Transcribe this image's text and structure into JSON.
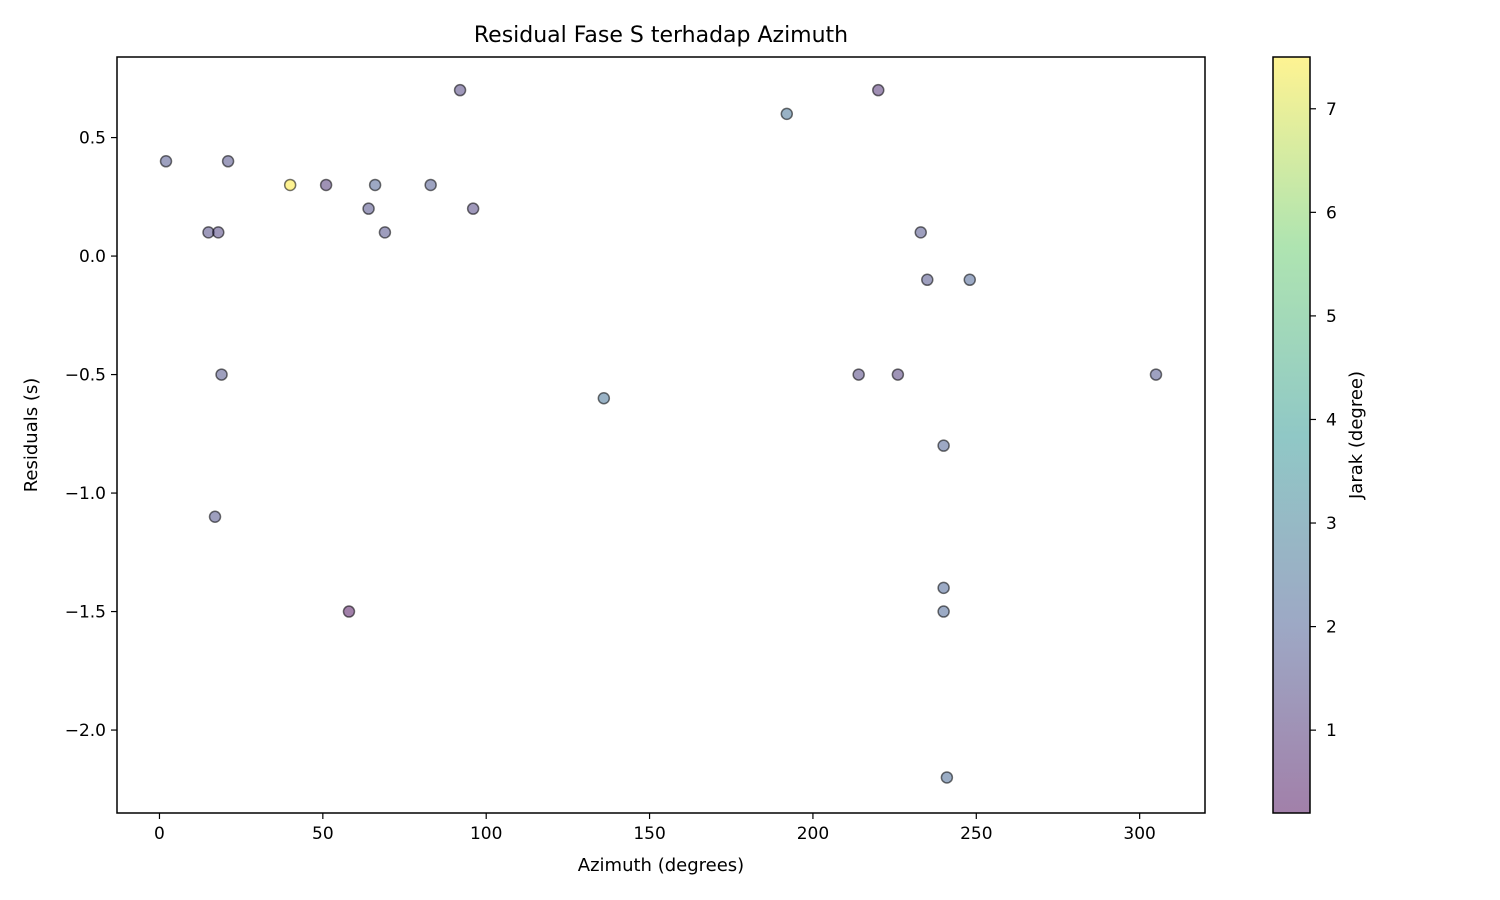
{
  "chart_data": {
    "type": "scatter",
    "title": "Residual Fase S terhadap Azimuth",
    "xlabel": "Azimuth (degrees)",
    "ylabel": "Residuals (s)",
    "colorbar_label": "Jarak (degree)",
    "xlim": [
      -13,
      320
    ],
    "ylim": [
      -2.35,
      0.84
    ],
    "x_ticks": [
      0,
      50,
      100,
      150,
      200,
      250,
      300
    ],
    "y_ticks": [
      0.5,
      0.0,
      -0.5,
      -1.0,
      -1.5,
      -2.0
    ],
    "y_tick_labels": [
      "0.5",
      "0.0",
      "−0.5",
      "−1.0",
      "−1.5",
      "−2.0"
    ],
    "color_range": [
      0.2,
      7.5
    ],
    "colorbar_ticks": [
      1,
      2,
      3,
      4,
      5,
      6,
      7
    ],
    "colormap": "viridis",
    "marker_alpha": 0.5,
    "grid": false,
    "points": [
      {
        "x": 2,
        "y": 0.4,
        "c": 1.7
      },
      {
        "x": 15,
        "y": 0.1,
        "c": 1.4
      },
      {
        "x": 17,
        "y": -1.1,
        "c": 1.6
      },
      {
        "x": 18,
        "y": 0.1,
        "c": 1.3
      },
      {
        "x": 19,
        "y": -0.5,
        "c": 1.6
      },
      {
        "x": 21,
        "y": 0.4,
        "c": 1.5
      },
      {
        "x": 40,
        "y": 0.3,
        "c": 7.5
      },
      {
        "x": 51,
        "y": 0.3,
        "c": 1.0
      },
      {
        "x": 58,
        "y": -1.5,
        "c": 0.2
      },
      {
        "x": 64,
        "y": 0.2,
        "c": 1.5
      },
      {
        "x": 66,
        "y": 0.3,
        "c": 2.0
      },
      {
        "x": 69,
        "y": 0.1,
        "c": 1.5
      },
      {
        "x": 83,
        "y": 0.3,
        "c": 1.8
      },
      {
        "x": 92,
        "y": 0.7,
        "c": 1.3
      },
      {
        "x": 96,
        "y": 0.2,
        "c": 1.3
      },
      {
        "x": 136,
        "y": -0.6,
        "c": 2.6
      },
      {
        "x": 192,
        "y": 0.6,
        "c": 2.6
      },
      {
        "x": 214,
        "y": -0.5,
        "c": 1.3
      },
      {
        "x": 220,
        "y": 0.7,
        "c": 0.9
      },
      {
        "x": 226,
        "y": -0.5,
        "c": 1.1
      },
      {
        "x": 233,
        "y": 0.1,
        "c": 1.6
      },
      {
        "x": 235,
        "y": -0.1,
        "c": 1.6
      },
      {
        "x": 240,
        "y": -0.8,
        "c": 2.0
      },
      {
        "x": 240,
        "y": -1.4,
        "c": 2.1
      },
      {
        "x": 240,
        "y": -1.5,
        "c": 2.2
      },
      {
        "x": 241,
        "y": -2.2,
        "c": 2.3
      },
      {
        "x": 248,
        "y": -0.1,
        "c": 2.1
      },
      {
        "x": 305,
        "y": -0.5,
        "c": 1.7
      }
    ]
  }
}
